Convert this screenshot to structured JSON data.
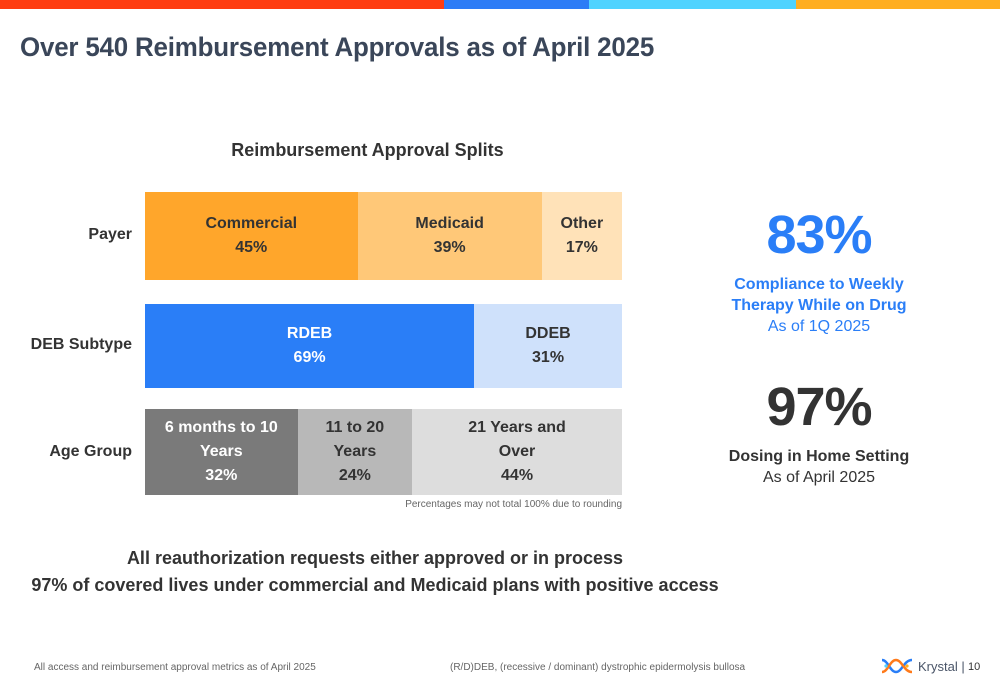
{
  "header": {
    "title": "Over 540 Reimbursement Approvals as of April 2025",
    "accent_colors": [
      "#ff3d11",
      "#2d7cf6",
      "#4fd3ff",
      "#ffae21"
    ]
  },
  "chart_data": {
    "type": "bar",
    "stacked": "100%",
    "orientation": "horizontal",
    "title": "Reimbursement Approval Splits",
    "categories": [
      "Payer",
      "DEB Subtype",
      "Age Group"
    ],
    "rows": [
      {
        "label": "Payer",
        "segments": [
          {
            "lines": [
              "Commercial",
              "45%"
            ],
            "value": 45,
            "color": "#ffa62b",
            "text_color": "#333333"
          },
          {
            "lines": [
              "Medicaid",
              "39%"
            ],
            "value": 39,
            "color": "#ffc878",
            "text_color": "#333333"
          },
          {
            "lines": [
              "Other",
              "17%"
            ],
            "value": 17,
            "color": "#ffe2b8",
            "text_color": "#333333"
          }
        ]
      },
      {
        "label": "DEB Subtype",
        "segments": [
          {
            "lines": [
              "RDEB",
              "69%"
            ],
            "value": 69,
            "color": "#2a7ef7",
            "text_color": "#ffffff"
          },
          {
            "lines": [
              "DDEB",
              "31%"
            ],
            "value": 31,
            "color": "#cfe1fb",
            "text_color": "#333333"
          }
        ]
      },
      {
        "label": "Age Group",
        "segments": [
          {
            "lines": [
              "6 months to 10",
              "Years",
              "32%"
            ],
            "value": 32,
            "color": "#7a7a7a",
            "text_color": "#ffffff"
          },
          {
            "lines": [
              "11 to 20",
              "Years",
              "24%"
            ],
            "value": 24,
            "color": "#b8b8b8",
            "text_color": "#333333"
          },
          {
            "lines": [
              "21 Years and",
              "Over",
              "44%"
            ],
            "value": 44,
            "color": "#dddddd",
            "text_color": "#333333"
          }
        ]
      }
    ],
    "note": "Percentages may not total 100% due to rounding"
  },
  "stats": [
    {
      "value": "83%",
      "caption_bold": "Compliance to Weekly Therapy While on Drug",
      "caption": "As of 1Q 2025",
      "color": "#2a7ef7"
    },
    {
      "value": "97%",
      "caption_bold": "Dosing in Home Setting",
      "caption": "As of April 2025",
      "color": "#333333"
    }
  ],
  "takeaways": {
    "line1": "All reauthorization requests either approved or in process",
    "line2": "97% of covered lives under commercial and Medicaid plans with positive access"
  },
  "footer": {
    "left": "All access and reimbursement approval metrics as of April 2025",
    "center": "(R/D)DEB, (recessive / dominant) dystrophic epidermolysis bullosa",
    "logo_text": "Krystal |",
    "page_number": "10"
  }
}
